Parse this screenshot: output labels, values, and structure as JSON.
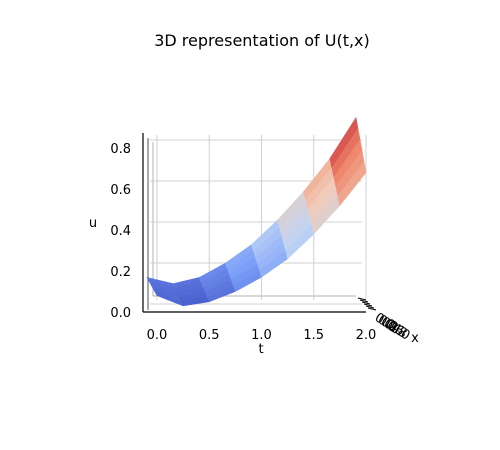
{
  "chart_data": {
    "type": "surface3d",
    "title": "3D representation of U(t,x)",
    "xlabel": "t",
    "ylabel": "x",
    "zlabel": "u",
    "t_ticks": [
      "0.0",
      "0.5",
      "1.0",
      "1.5",
      "2.0"
    ],
    "x_ticks": [
      "0.0",
      "0.2",
      "0.4",
      "0.6",
      "0.8",
      "1.0"
    ],
    "u_ticks": [
      "0.0",
      "0.2",
      "0.4",
      "0.6",
      "0.8"
    ],
    "t_range": [
      0,
      2
    ],
    "x_range": [
      0,
      1
    ],
    "u_range": [
      0,
      0.9
    ],
    "colormap": "coolwarm",
    "colormap_colors": [
      "#3b4cc0",
      "#7b9ff9",
      "#c0d4f5",
      "#f2cbb7",
      "#ee8468",
      "#b40426"
    ],
    "grid": true,
    "series": [
      {
        "x": 0.0,
        "t": [
          0.0,
          0.25,
          0.5,
          0.75,
          1.0,
          1.25,
          1.5,
          1.75,
          2.0
        ],
        "u": [
          0.08,
          0.03,
          0.05,
          0.1,
          0.17,
          0.26,
          0.38,
          0.52,
          0.68
        ]
      },
      {
        "x": 1.0,
        "t": [
          0.0,
          0.25,
          0.5,
          0.75,
          1.0,
          1.25,
          1.5,
          1.75,
          2.0
        ],
        "u": [
          0.1,
          0.07,
          0.1,
          0.17,
          0.26,
          0.38,
          0.52,
          0.68,
          0.88
        ]
      }
    ]
  }
}
